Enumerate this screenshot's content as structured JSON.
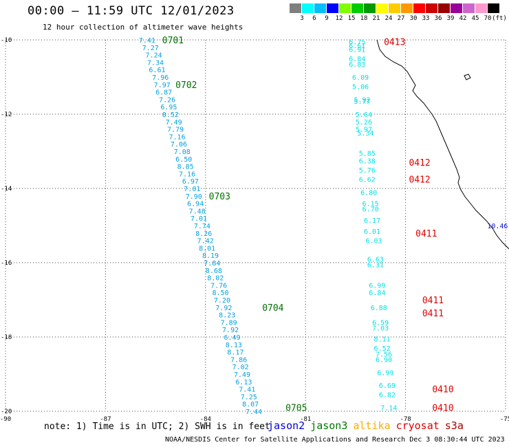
{
  "header": {
    "title": "00:00 – 11:59 UTC 12/01/2023",
    "subtitle": "12 hour collection of altimeter wave heights"
  },
  "colorbar": {
    "labels": [
      "3",
      "6",
      "9",
      "12",
      "15",
      "18",
      "21",
      "24",
      "27",
      "30",
      "33",
      "36",
      "39",
      "42",
      "45",
      "70"
    ],
    "unit": "(ft)",
    "colors": [
      "#7f7f7f",
      "#00ffff",
      "#00bfff",
      "#0000ff",
      "#7fff00",
      "#00cc00",
      "#009900",
      "#ffff00",
      "#ffcc00",
      "#ff9900",
      "#ff0000",
      "#cc0000",
      "#990000",
      "#990099",
      "#cc66cc",
      "#ff99cc",
      "#000000"
    ]
  },
  "map": {
    "lon_ticks": [
      "-90",
      "-87",
      "-84",
      "-81",
      "-78",
      "-75"
    ],
    "lat_ticks": [
      "-10",
      "-12",
      "-14",
      "-16",
      "-18",
      "-20"
    ],
    "lon_range": [
      -90,
      -75
    ],
    "lat_range": [
      -20,
      -10
    ],
    "coastline_color": "#000000",
    "grid": "dotted",
    "tracks": [
      {
        "satellite": "jason3",
        "color": "#00a0e0",
        "label_color": "#007000",
        "labels": [
          {
            "text": "0701",
            "lon": -85.3,
            "lat": -10.0
          },
          {
            "text": "0702",
            "lon": -84.9,
            "lat": -11.2
          },
          {
            "text": "0703",
            "lon": -83.9,
            "lat": -14.2
          },
          {
            "text": "0704",
            "lon": -82.3,
            "lat": -17.2
          },
          {
            "text": "0705",
            "lon": -81.6,
            "lat": -19.9
          }
        ],
        "values": [
          {
            "v": "7.41",
            "lon": -86.0,
            "lat": -10.0
          },
          {
            "v": "7.27",
            "lon": -85.9,
            "lat": -10.2
          },
          {
            "v": "7.24",
            "lon": -85.8,
            "lat": -10.4
          },
          {
            "v": "7.34",
            "lon": -85.75,
            "lat": -10.6
          },
          {
            "v": "6.61",
            "lon": -85.7,
            "lat": -10.8
          },
          {
            "v": "7.96",
            "lon": -85.6,
            "lat": -11.0
          },
          {
            "v": "7.97",
            "lon": -85.55,
            "lat": -11.2
          },
          {
            "v": "6.87",
            "lon": -85.5,
            "lat": -11.4
          },
          {
            "v": "7.26",
            "lon": -85.4,
            "lat": -11.6
          },
          {
            "v": "6.95",
            "lon": -85.35,
            "lat": -11.8
          },
          {
            "v": "8.52",
            "lon": -85.3,
            "lat": -12.0
          },
          {
            "v": "7.49",
            "lon": -85.2,
            "lat": -12.2
          },
          {
            "v": "7.79",
            "lon": -85.15,
            "lat": -12.4
          },
          {
            "v": "7.16",
            "lon": -85.1,
            "lat": -12.6
          },
          {
            "v": "7.06",
            "lon": -85.05,
            "lat": -12.8
          },
          {
            "v": "7.08",
            "lon": -84.95,
            "lat": -13.0
          },
          {
            "v": "6.50",
            "lon": -84.9,
            "lat": -13.2
          },
          {
            "v": "8.85",
            "lon": -84.85,
            "lat": -13.4
          },
          {
            "v": "7.16",
            "lon": -84.8,
            "lat": -13.6
          },
          {
            "v": "6.97",
            "lon": -84.7,
            "lat": -13.8
          },
          {
            "v": "7.01",
            "lon": -84.65,
            "lat": -14.0
          },
          {
            "v": "7.90",
            "lon": -84.6,
            "lat": -14.2
          },
          {
            "v": "6.94",
            "lon": -84.55,
            "lat": -14.4
          },
          {
            "v": "7.48",
            "lon": -84.5,
            "lat": -14.6
          },
          {
            "v": "7.01",
            "lon": -84.45,
            "lat": -14.8
          },
          {
            "v": "7.74",
            "lon": -84.35,
            "lat": -15.0
          },
          {
            "v": "8.26",
            "lon": -84.3,
            "lat": -15.2
          },
          {
            "v": "7.42",
            "lon": -84.25,
            "lat": -15.4
          },
          {
            "v": "8.01",
            "lon": -84.2,
            "lat": -15.6
          },
          {
            "v": "8.19",
            "lon": -84.1,
            "lat": -15.8
          },
          {
            "v": "7.84",
            "lon": -84.05,
            "lat": -16.0
          },
          {
            "v": "8.68",
            "lon": -84.0,
            "lat": -16.2
          },
          {
            "v": "8.02",
            "lon": -83.95,
            "lat": -16.4
          },
          {
            "v": "7.76",
            "lon": -83.85,
            "lat": -16.6
          },
          {
            "v": "8.50",
            "lon": -83.8,
            "lat": -16.8
          },
          {
            "v": "7.20",
            "lon": -83.75,
            "lat": -17.0
          },
          {
            "v": "7.92",
            "lon": -83.7,
            "lat": -17.2
          },
          {
            "v": "8.23",
            "lon": -83.6,
            "lat": -17.4
          },
          {
            "v": "7.89",
            "lon": -83.55,
            "lat": -17.6
          },
          {
            "v": "7.92",
            "lon": -83.5,
            "lat": -17.8
          },
          {
            "v": "6.49",
            "lon": -83.45,
            "lat": -18.0
          },
          {
            "v": "8.13",
            "lon": -83.4,
            "lat": -18.2
          },
          {
            "v": "8.17",
            "lon": -83.35,
            "lat": -18.4
          },
          {
            "v": "7.86",
            "lon": -83.25,
            "lat": -18.6
          },
          {
            "v": "7.02",
            "lon": -83.2,
            "lat": -18.8
          },
          {
            "v": "7.49",
            "lon": -83.15,
            "lat": -19.0
          },
          {
            "v": "6.13",
            "lon": -83.1,
            "lat": -19.2
          },
          {
            "v": "7.41",
            "lon": -83.0,
            "lat": -19.4
          },
          {
            "v": "7.25",
            "lon": -82.95,
            "lat": -19.6
          },
          {
            "v": "8.07",
            "lon": -82.9,
            "lat": -19.8
          },
          {
            "v": "7.44",
            "lon": -82.8,
            "lat": -20.0
          }
        ]
      },
      {
        "satellite": "cryosat",
        "color": "#00e0e8",
        "label_color": "#e00000",
        "labels": [
          {
            "text": "0413",
            "lon": -78.65,
            "lat": -10.05
          },
          {
            "text": "0412",
            "lon": -77.9,
            "lat": -13.3
          },
          {
            "text": "0412",
            "lon": -77.9,
            "lat": -13.75
          },
          {
            "text": "0411",
            "lon": -77.7,
            "lat": -15.2
          },
          {
            "text": "0411",
            "lon": -77.5,
            "lat": -17.0
          },
          {
            "text": "0411",
            "lon": -77.5,
            "lat": -17.35
          },
          {
            "text": "0410",
            "lon": -77.2,
            "lat": -19.4
          },
          {
            "text": "0410",
            "lon": -77.2,
            "lat": -19.9
          }
        ],
        "values": [
          {
            "v": "6.75",
            "lon": -79.7,
            "lat": -10.05
          },
          {
            "v": "6.61",
            "lon": -79.7,
            "lat": -10.15
          },
          {
            "v": "6.91",
            "lon": -79.7,
            "lat": -10.25
          },
          {
            "v": "6.84",
            "lon": -79.7,
            "lat": -10.5
          },
          {
            "v": "6.83",
            "lon": -79.7,
            "lat": -10.65
          },
          {
            "v": "6.09",
            "lon": -79.6,
            "lat": -11.0
          },
          {
            "v": "5.06",
            "lon": -79.6,
            "lat": -11.25
          },
          {
            "v": "5.92",
            "lon": -79.55,
            "lat": -11.6
          },
          {
            "v": "5.77",
            "lon": -79.55,
            "lat": -11.65
          },
          {
            "v": "5.64",
            "lon": -79.5,
            "lat": -12.0
          },
          {
            "v": "5.26",
            "lon": -79.5,
            "lat": -12.2
          },
          {
            "v": "5.97",
            "lon": -79.5,
            "lat": -12.4
          },
          {
            "v": "5.34",
            "lon": -79.45,
            "lat": -12.5
          },
          {
            "v": "5.85",
            "lon": -79.4,
            "lat": -13.05
          },
          {
            "v": "6.38",
            "lon": -79.4,
            "lat": -13.25
          },
          {
            "v": "5.76",
            "lon": -79.4,
            "lat": -13.5
          },
          {
            "v": "6.62",
            "lon": -79.4,
            "lat": -13.75
          },
          {
            "v": "6.80",
            "lon": -79.35,
            "lat": -14.1
          },
          {
            "v": "6.15",
            "lon": -79.3,
            "lat": -14.4
          },
          {
            "v": "6.70",
            "lon": -79.3,
            "lat": -14.55
          },
          {
            "v": "6.17",
            "lon": -79.25,
            "lat": -14.85
          },
          {
            "v": "6.01",
            "lon": -79.25,
            "lat": -15.15
          },
          {
            "v": "6.03",
            "lon": -79.2,
            "lat": -15.4
          },
          {
            "v": "6.63",
            "lon": -79.15,
            "lat": -15.9
          },
          {
            "v": "6.31",
            "lon": -79.15,
            "lat": -16.05
          },
          {
            "v": "6.99",
            "lon": -79.1,
            "lat": -16.6
          },
          {
            "v": "6.84",
            "lon": -79.1,
            "lat": -16.8
          },
          {
            "v": "6.88",
            "lon": -79.05,
            "lat": -17.2
          },
          {
            "v": "6.59",
            "lon": -79.0,
            "lat": -17.6
          },
          {
            "v": "7.03",
            "lon": -79.0,
            "lat": -17.75
          },
          {
            "v": "8.11",
            "lon": -78.95,
            "lat": -18.05
          },
          {
            "v": "6.52",
            "lon": -78.95,
            "lat": -18.3
          },
          {
            "v": "7.56",
            "lon": -78.9,
            "lat": -18.45
          },
          {
            "v": "6.90",
            "lon": -78.9,
            "lat": -18.6
          },
          {
            "v": "6.99",
            "lon": -78.85,
            "lat": -18.95
          },
          {
            "v": "6.69",
            "lon": -78.8,
            "lat": -19.3
          },
          {
            "v": "6.82",
            "lon": -78.8,
            "lat": -19.55
          },
          {
            "v": "7.14",
            "lon": -78.75,
            "lat": -19.9
          }
        ]
      },
      {
        "satellite": "jason2",
        "color": "#1010d0",
        "label_color": "#1010d0",
        "labels": [],
        "values": [
          {
            "v": "10.46",
            "lon": -75.55,
            "lat": -15.0
          }
        ]
      }
    ]
  },
  "footer": {
    "note": "note: 1) Time is in UTC; 2) SWH is in feet",
    "legend": [
      {
        "name": "jason2",
        "color": "#0000dd"
      },
      {
        "name": "jason3",
        "color": "#007700"
      },
      {
        "name": "altika",
        "color": "#ffaa00"
      },
      {
        "name": "cryosat",
        "color": "#dd0000"
      },
      {
        "name": "s3a",
        "color": "#aa0000"
      }
    ],
    "credit": "NOAA/NESDIS Center for Satellite Applications and Research   Dec  3 08:30:44 UTC 2023"
  }
}
